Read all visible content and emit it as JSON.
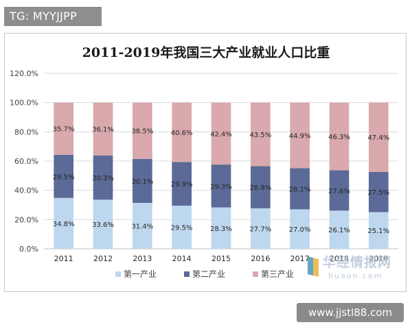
{
  "badge_top": "TG: MYYJJPP",
  "badge_bottom": "www.jjstl88.com",
  "watermark": {
    "main": "华经情报网",
    "sub": "huaon.com"
  },
  "colors": {
    "primary": "#bdd7ee",
    "secondary": "#5b6a96",
    "tertiary": "#d9a9ad"
  },
  "chart_data": {
    "type": "bar",
    "stacked": true,
    "title": "2011-2019年我国三大产业就业人口比重",
    "categories": [
      "2011",
      "2012",
      "2013",
      "2014",
      "2015",
      "2016",
      "2017",
      "2018",
      "2019"
    ],
    "series": [
      {
        "name": "第一产业",
        "values": [
          34.8,
          33.6,
          31.4,
          29.5,
          28.3,
          27.7,
          27.0,
          26.1,
          25.1
        ],
        "labels": [
          "34.8%",
          "33.6%",
          "31.4%",
          "29.5%",
          "28.3%",
          "27.7%",
          "27.0%",
          "26.1%",
          "25.1%"
        ]
      },
      {
        "name": "第二产业",
        "values": [
          29.5,
          30.3,
          30.1,
          29.9,
          29.3,
          28.8,
          28.1,
          27.6,
          27.5
        ],
        "labels": [
          "29.5%",
          "30.3%",
          "30.1%",
          "29.9%",
          "29.3%",
          "28.8%",
          "28.1%",
          "27.6%",
          "27.5%"
        ]
      },
      {
        "name": "第三产业",
        "values": [
          35.7,
          36.1,
          38.5,
          40.6,
          42.4,
          43.5,
          44.9,
          46.3,
          47.4
        ],
        "labels": [
          "35.7%",
          "36.1%",
          "38.5%",
          "40.6%",
          "42.4%",
          "43.5%",
          "44.9%",
          "46.3%",
          "47.4%"
        ]
      }
    ],
    "yticks": [
      "0.0%",
      "20.0%",
      "40.0%",
      "60.0%",
      "80.0%",
      "100.0%",
      "120.0%"
    ],
    "ylim": [
      0,
      120
    ],
    "grid": true,
    "legend": "bottom"
  }
}
